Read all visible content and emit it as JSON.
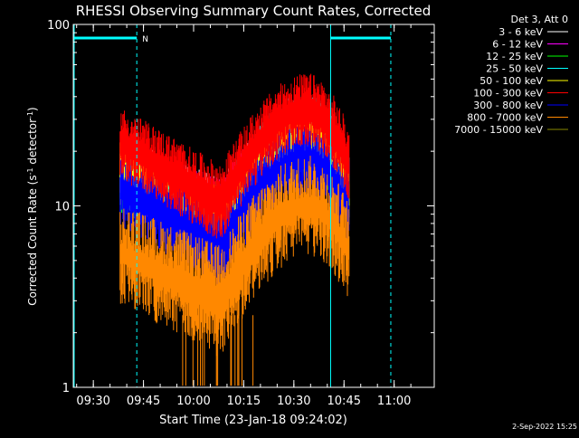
{
  "chart_data": {
    "type": "line",
    "title": "RHESSI Observing Summary Count Rates, Corrected",
    "xlabel": "Start Time (23-Jan-18 09:24:02)",
    "ylabel": "Corrected Count Rate (s⁻¹ detector⁻¹)",
    "ylabel_main": "Corrected Count Rate (s",
    "ylabel_sup1": "-1",
    "ylabel_mid": " detector",
    "ylabel_sup2": "-1",
    "ylabel_end": ")",
    "yscale": "log",
    "ylim": [
      1,
      100
    ],
    "xlim_minutes": [
      9.4,
      11.2
    ],
    "x_tick_labels": [
      "09:30",
      "09:45",
      "10:00",
      "10:15",
      "10:30",
      "10:45",
      "11:00"
    ],
    "y_tick_labels": [
      "1",
      "10",
      "100"
    ],
    "legend_header": "Det 3, Att 0",
    "legend_position": "right",
    "date_stamp": "2-Sep-2022 15:25",
    "night_marker": "N",
    "colors": {
      "background": "#000000",
      "axes": "#ffffff",
      "flag": "#00ffff"
    },
    "series": [
      {
        "name": "3 - 6 keV",
        "color": "#ffffff",
        "start": [
          14,
          17
        ],
        "trough": [
          8,
          10
        ],
        "peak": [
          22,
          27
        ],
        "end": [
          12,
          14
        ]
      },
      {
        "name": "6 - 12 keV",
        "color": "#ff00ff",
        "start": [
          14,
          17
        ],
        "trough": [
          8,
          10
        ],
        "peak": [
          22,
          27
        ],
        "end": [
          12,
          14
        ]
      },
      {
        "name": "12 - 25 keV",
        "color": "#00ff00",
        "start": [
          13,
          16
        ],
        "trough": [
          7,
          9
        ],
        "peak": [
          20,
          25
        ],
        "end": [
          11,
          13
        ]
      },
      {
        "name": "25 - 50 keV",
        "color": "#00ffff",
        "start": [
          15,
          17
        ],
        "trough": [
          7,
          9
        ],
        "peak": [
          25,
          30
        ],
        "end": [
          12,
          14
        ]
      },
      {
        "name": "50 - 100 keV",
        "color": "#ffff00",
        "start": [
          14,
          16
        ],
        "trough": [
          7,
          9
        ],
        "peak": [
          22,
          27
        ],
        "end": [
          11,
          13
        ]
      },
      {
        "name": "100 - 300 keV",
        "color": "#ff0000",
        "start": [
          20,
          25
        ],
        "trough": [
          9,
          12
        ],
        "peak": [
          30,
          38
        ],
        "end": [
          15,
          19
        ]
      },
      {
        "name": "300 - 800 keV",
        "color": "#0000ff",
        "start": [
          11,
          14
        ],
        "trough": [
          5,
          7
        ],
        "peak": [
          16,
          20
        ],
        "end": [
          8,
          10
        ]
      },
      {
        "name": "800 - 7000 keV",
        "color": "#ff8800",
        "start": [
          5,
          6
        ],
        "trough": [
          2.5,
          3.5
        ],
        "peak": [
          9,
          11
        ],
        "end": [
          5,
          6
        ]
      },
      {
        "name": "7000 - 15000 keV",
        "color": "#888800",
        "start": [
          null,
          null
        ],
        "trough": [
          null,
          null
        ],
        "peak": [
          null,
          null
        ],
        "end": [
          null,
          null
        ]
      }
    ]
  }
}
